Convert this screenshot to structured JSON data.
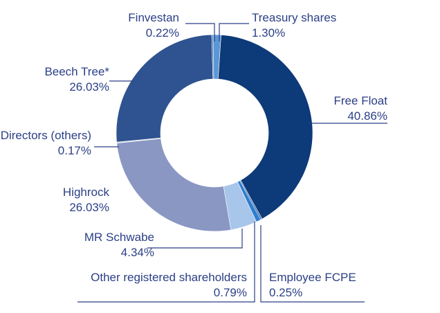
{
  "chart_data": {
    "type": "pie",
    "variant": "donut",
    "slices": [
      {
        "name": "Treasury shares",
        "value_label": "1.30%",
        "value": 1.3,
        "color": "#5b97d5"
      },
      {
        "name": "Free Float",
        "value_label": "40.86%",
        "value": 40.86,
        "color": "#0d3a78"
      },
      {
        "name": "Employee FCPE",
        "value_label": "0.25%",
        "value": 0.25,
        "color": "#2f5fa6"
      },
      {
        "name": "Other registered shareholders",
        "value_label": "0.79%",
        "value": 0.79,
        "color": "#2f7ed0"
      },
      {
        "name": "MR Schwabe",
        "value_label": "4.34%",
        "value": 4.34,
        "color": "#a8c6ea"
      },
      {
        "name": "Highrock",
        "value_label": "26.03%",
        "value": 26.03,
        "color": "#8a97c3"
      },
      {
        "name": "Directors (others)",
        "value_label": "0.17%",
        "value": 0.17,
        "color": "#c9cfe2"
      },
      {
        "name": "Beech Tree*",
        "value_label": "26.03%",
        "value": 26.03,
        "color": "#2e5390"
      },
      {
        "name": "Finvestan",
        "value_label": "0.22%",
        "value": 0.22,
        "color": "#3b6fb6"
      }
    ]
  }
}
